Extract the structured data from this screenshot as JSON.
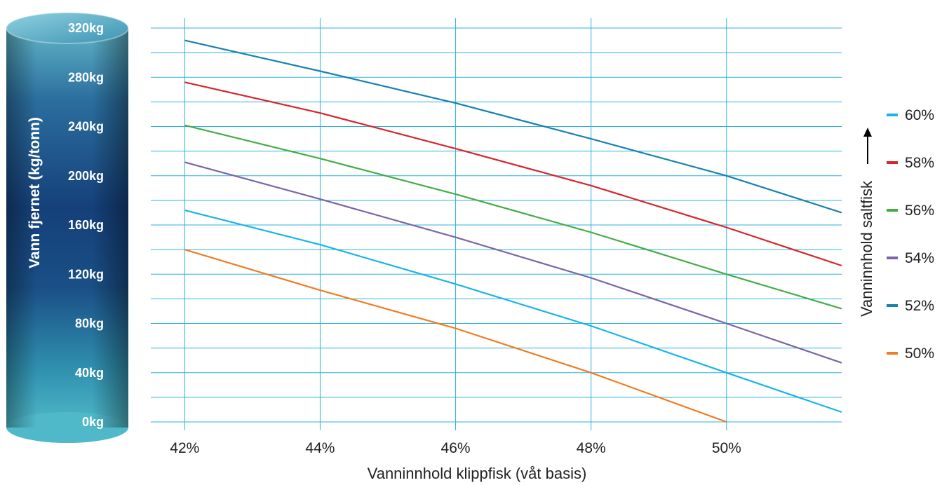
{
  "chart_data": {
    "type": "line",
    "xlabel": "Vanninnhold klippfisk (våt basis)",
    "ylabel": "Vann fjernet (kg/tonn)",
    "legend_title": "Vanninnhold saltfisk",
    "legend_position": "right",
    "x_tick_labels": [
      "42%",
      "44%",
      "46%",
      "48%",
      "50%"
    ],
    "y_tick_labels": [
      "0kg",
      "40kg",
      "80kg",
      "120kg",
      "160kg",
      "200kg",
      "240kg",
      "280kg",
      "320kg"
    ],
    "xlim": [
      41.5,
      51.7
    ],
    "ylim": [
      0,
      320
    ],
    "grid": true,
    "series": [
      {
        "name": "60%",
        "color": "#1ab4e8",
        "x": [
          42,
          44,
          46,
          48,
          50,
          51.7
        ],
        "y": [
          172,
          144,
          112,
          78,
          40,
          8
        ]
      },
      {
        "name": "58%",
        "color": "#d7252d",
        "x": [
          42,
          44,
          46,
          48,
          50,
          51.7
        ],
        "y": [
          276,
          251,
          222,
          192,
          158,
          127
        ]
      },
      {
        "name": "56%",
        "color": "#44ac47",
        "x": [
          42,
          44,
          46,
          48,
          50,
          51.7
        ],
        "y": [
          241,
          214,
          185,
          154,
          120,
          92
        ]
      },
      {
        "name": "54%",
        "color": "#7b64a8",
        "x": [
          42,
          44,
          46,
          48,
          50,
          51.7
        ],
        "y": [
          211,
          181,
          150,
          117,
          80,
          48
        ]
      },
      {
        "name": "52%",
        "color": "#1881b0",
        "x": [
          42,
          44,
          46,
          48,
          50,
          51.7
        ],
        "y": [
          310,
          285,
          259,
          230,
          200,
          170
        ]
      },
      {
        "name": "50%",
        "color": "#f07c22",
        "x": [
          42,
          44,
          46,
          48,
          50
        ],
        "y": [
          140,
          107,
          76,
          40,
          0
        ]
      }
    ]
  }
}
